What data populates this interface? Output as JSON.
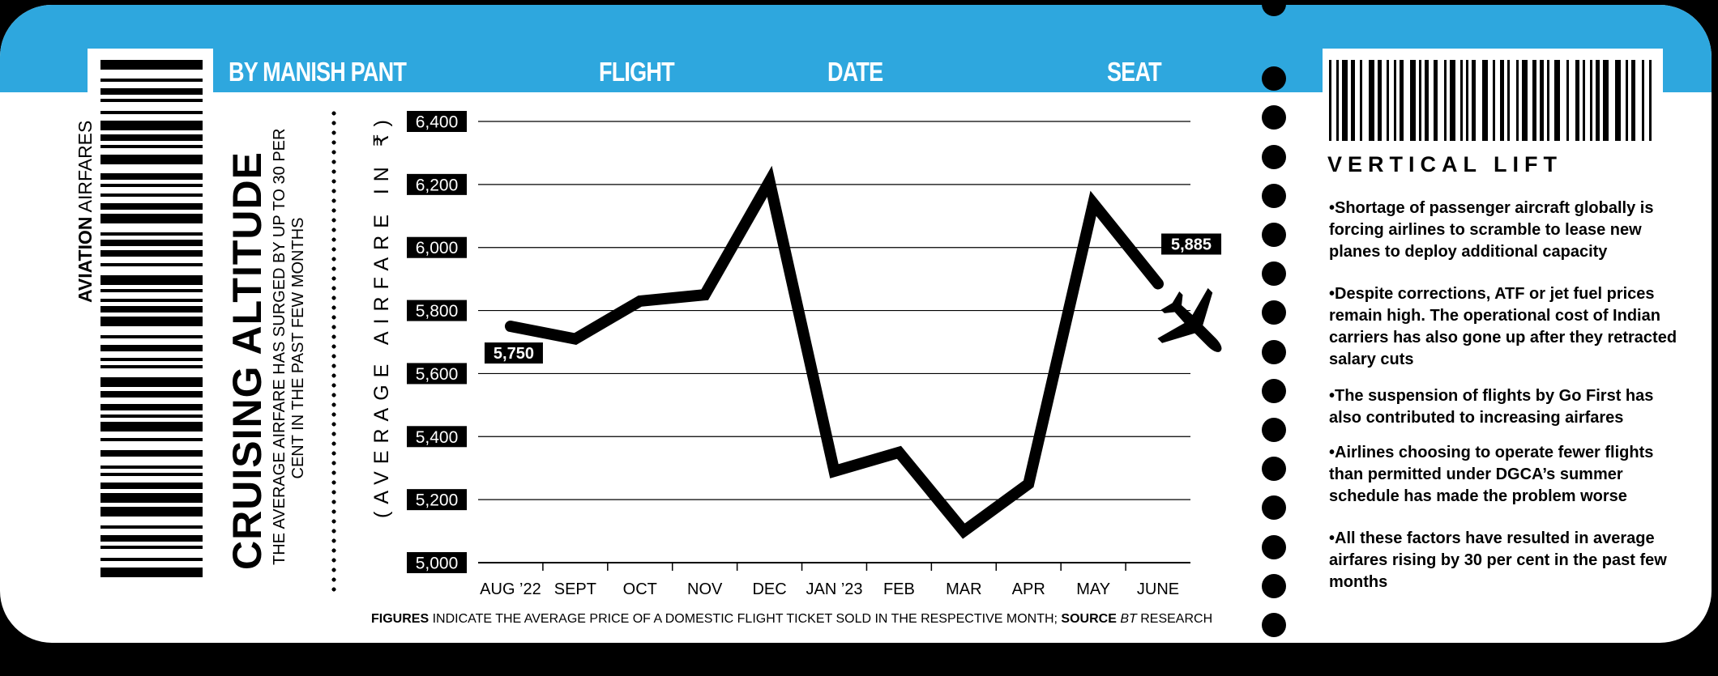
{
  "header": {
    "byline": "BY MANISH PANT",
    "flight": "FLIGHT",
    "date": "DATE",
    "seat": "SEAT"
  },
  "left": {
    "tag_bold": "AVIATION",
    "tag_rest": " AIRFARES",
    "title": "CRUISING ALTITUDE",
    "subtitle_line1": "THE AVERAGE AIRFARE HAS SURGED BY UP TO 30 PER",
    "subtitle_line2": "CENT IN THE PAST FEW MONTHS"
  },
  "stub": {
    "title": "VERTICAL LIFT",
    "bullets": [
      "•Shortage of passenger aircraft globally is forcing airlines to scramble to lease new planes to deploy additional capacity",
      "•Despite corrections, ATF or jet fuel prices remain high. The operational cost of Indian carriers has also gone up after they retracted salary cuts",
      "•The suspension of flights by Go First has also contributed to increasing airfares",
      "•Airlines choosing to operate fewer flights than permitted under DGCA’s summer schedule has made the problem worse",
      "•All these factors have resulted in average airfares rising by 30 per cent in the past few months"
    ]
  },
  "footnote": {
    "figures_bold": "FIGURES",
    "figures_text": " INDICATE THE AVERAGE PRICE OF A DOMESTIC FLIGHT TICKET SOLD IN THE RESPECTIVE MONTH; ",
    "source_bold": "SOURCE",
    "source_italic": " BT",
    "source_text": " RESEARCH"
  },
  "colors": {
    "accent": "#2ea7de",
    "ink": "#000000",
    "paper": "#ffffff"
  },
  "icons": [
    "barcode",
    "airplane-icon"
  ],
  "chart_data": {
    "type": "line",
    "categories": [
      "AUG ’22",
      "SEPT",
      "OCT",
      "NOV",
      "DEC",
      "JAN ’23",
      "FEB",
      "MAR",
      "APR",
      "MAY",
      "JUNE"
    ],
    "values": [
      5750,
      5710,
      5830,
      5850,
      6210,
      5290,
      5350,
      5100,
      5250,
      6140,
      5885
    ],
    "ylabel": "(AVERAGE AIRFARE IN ₹)",
    "ylim": [
      5000,
      6400
    ],
    "yticks": [
      5000,
      5200,
      5400,
      5600,
      5800,
      6000,
      6200,
      6400
    ],
    "ytick_labels": [
      "5,000",
      "5,200",
      "5,400",
      "5,600",
      "5,800",
      "6,000",
      "6,200",
      "6,400"
    ],
    "annotations": [
      {
        "category": "AUG ’22",
        "text": "5,750"
      },
      {
        "category": "JUNE",
        "text": "5,885"
      }
    ],
    "grid": true
  }
}
